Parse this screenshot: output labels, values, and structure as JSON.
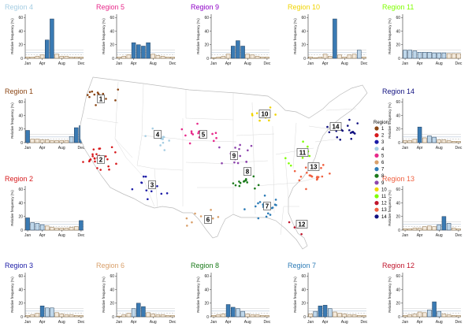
{
  "months": [
    "Jan",
    "Feb",
    "Mar",
    "Apr",
    "May",
    "Jun",
    "Jul",
    "Aug",
    "Sep",
    "Oct",
    "Nov",
    "Dec"
  ],
  "axis": {
    "ylabel": "Relative frequency (%)",
    "yticks": [
      "0",
      "20",
      "40",
      "60"
    ],
    "xticks": [
      "Jan",
      "Apr",
      "Aug",
      "Dec"
    ],
    "ylim": [
      0,
      65
    ]
  },
  "legend": {
    "title": "Region",
    "labels": [
      "1",
      "2",
      "3",
      "4",
      "5",
      "6",
      "7",
      "8",
      "9",
      "10",
      "11",
      "12",
      "13",
      "14"
    ]
  },
  "colors": {
    "bar_high": "#3a7ab3",
    "bar_mid": "#bfd7ea",
    "bar_low": "#8a6a3c",
    "regions": [
      "#8b4513",
      "#d7191c",
      "#1a1aa6",
      "#a6cee3",
      "#e7298a",
      "#d9a06b",
      "#2c7bb6",
      "#1a7a1a",
      "#8e44ad",
      "#f0d400",
      "#7fff00",
      "#c0142b",
      "#f06040",
      "#101080"
    ]
  },
  "chart_data": [
    {
      "type": "bar",
      "title": "Region 4",
      "values": [
        2,
        2,
        3,
        5,
        27,
        58,
        6,
        3,
        3,
        2,
        2,
        2
      ]
    },
    {
      "type": "bar",
      "title": "Region 5",
      "values": [
        2,
        3,
        5,
        23,
        20,
        18,
        23,
        6,
        4,
        3,
        2,
        2
      ]
    },
    {
      "type": "bar",
      "title": "Region 9",
      "values": [
        1,
        2,
        3,
        6,
        18,
        26,
        18,
        6,
        5,
        3,
        2,
        2
      ]
    },
    {
      "type": "bar",
      "title": "Region 10",
      "values": [
        2,
        1,
        2,
        6,
        3,
        58,
        5,
        2,
        5,
        6,
        12,
        2
      ]
    },
    {
      "type": "bar",
      "title": "Region 11",
      "values": [
        12,
        12,
        11,
        9,
        9,
        9,
        8,
        8,
        8,
        7,
        7,
        7
      ]
    },
    {
      "type": "bar",
      "title": "Region 1",
      "values": [
        18,
        5,
        5,
        4,
        4,
        3,
        3,
        3,
        3,
        9,
        22,
        25
      ]
    },
    {
      "type": "bar",
      "title": "Region 14",
      "values": [
        3,
        3,
        5,
        23,
        7,
        10,
        8,
        4,
        4,
        3,
        2,
        2
      ]
    },
    {
      "type": "bar",
      "title": "Region 2",
      "values": [
        18,
        11,
        10,
        8,
        6,
        4,
        3,
        3,
        3,
        4,
        5,
        14
      ]
    },
    {
      "type": "bar",
      "title": "Region 13",
      "values": [
        2,
        2,
        3,
        3,
        5,
        6,
        5,
        8,
        20,
        10,
        3,
        2
      ]
    },
    {
      "type": "bar",
      "title": "Region 3",
      "values": [
        2,
        3,
        5,
        16,
        13,
        13,
        6,
        4,
        3,
        3,
        2,
        2
      ]
    },
    {
      "type": "bar",
      "title": "Region 6",
      "values": [
        1,
        3,
        5,
        12,
        20,
        15,
        6,
        4,
        3,
        3,
        2,
        2
      ]
    },
    {
      "type": "bar",
      "title": "Region 8",
      "values": [
        2,
        3,
        4,
        18,
        14,
        12,
        8,
        4,
        3,
        3,
        2,
        2
      ]
    },
    {
      "type": "bar",
      "title": "Region 7",
      "values": [
        4,
        8,
        16,
        17,
        12,
        7,
        5,
        4,
        3,
        3,
        2,
        2
      ]
    },
    {
      "type": "bar",
      "title": "Region 12",
      "values": [
        2,
        3,
        4,
        7,
        6,
        10,
        22,
        8,
        4,
        3,
        2,
        2
      ]
    }
  ],
  "panel_title_colors": [
    "#a6cee3",
    "#e7298a",
    "#8e00c6",
    "#f0d400",
    "#7fff00",
    "#8b4513",
    "#101080",
    "#d7191c",
    "#f06040",
    "#1a1aa6",
    "#d9a06b",
    "#1a7a1a",
    "#2c7bb6",
    "#c0142b"
  ],
  "map_labels": [
    "1",
    "2",
    "3",
    "4",
    "5",
    "6",
    "7",
    "8",
    "9",
    "10",
    "11",
    "12",
    "13",
    "14"
  ]
}
